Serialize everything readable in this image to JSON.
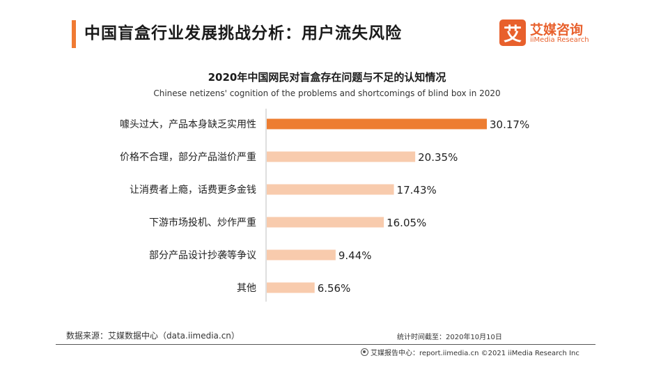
{
  "header": {
    "title": "中国盲盒行业发展挑战分析：用户流失风险",
    "accent_color": "#f07a33"
  },
  "logo": {
    "mark": "艾",
    "name_cn": "艾媒咨询",
    "name_en": "iiMedia Research"
  },
  "chart_data": {
    "type": "bar",
    "orientation": "horizontal",
    "title": "2020年中国网民对盲盒存在问题与不足的认知情况",
    "subtitle": "Chinese netizens' cognition of the problems and shortcomings of blind box in 2020",
    "categories": [
      "噱头过大，产品本身缺乏实用性",
      "价格不合理，部分产品溢价严重",
      "让消费者上瘾，话费更多金钱",
      "下游市场投机、炒作严重",
      "部分产品设计抄袭等争议",
      "其他"
    ],
    "values": [
      30.17,
      20.35,
      17.43,
      16.05,
      9.44,
      6.56
    ],
    "value_labels": [
      "30.17%",
      "20.35%",
      "17.43%",
      "16.05%",
      "9.44%",
      "6.56%"
    ],
    "unit": "%",
    "xlim": [
      0,
      30.17
    ],
    "highlight_index": 0,
    "highlight_color": "#ed7d31",
    "bar_color": "#f8cbad",
    "grid": false
  },
  "footer": {
    "source": "数据来源：艾媒数据中心（data.iimedia.cn）",
    "cutoff": "统计时间截至：2020年10月10日",
    "credit": "艾媒报告中心：report.iimedia.cn  ©2021  iiMedia Research  Inc"
  }
}
